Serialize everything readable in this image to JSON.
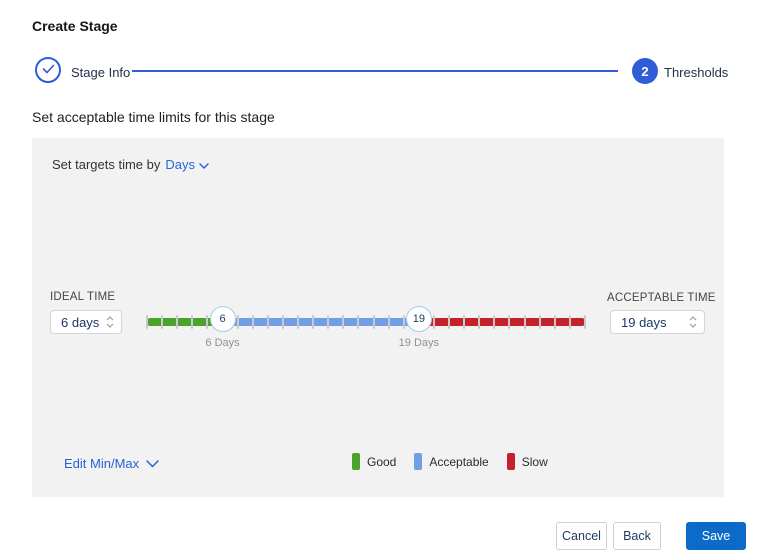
{
  "page": {
    "title": "Create Stage",
    "subtitle": "Set acceptable time limits for this stage"
  },
  "stepper": {
    "step1": {
      "label": "Stage Info",
      "state": "completed"
    },
    "step2": {
      "label": "Thresholds",
      "number": "2",
      "state": "active"
    }
  },
  "panel": {
    "targets_prefix": "Set targets time by",
    "unit_dropdown": {
      "value": "Days"
    },
    "ideal": {
      "label": "IDEAL TIME",
      "value": "6 days"
    },
    "acceptable": {
      "label": "ACCEPTABLE TIME",
      "value": "19 days"
    },
    "edit_minmax_label": "Edit Min/Max"
  },
  "slider": {
    "min": 1,
    "max": 30,
    "ideal_value": 6,
    "acceptable_value": 19,
    "ideal_handle_label": "6",
    "acceptable_handle_label": "19",
    "ideal_caption": "6 Days",
    "acceptable_caption": "19 Days",
    "colors": {
      "good": "#4aa32b",
      "acceptable": "#6f9fe8",
      "slow": "#c4212d"
    }
  },
  "legend": [
    {
      "label": "Good",
      "color": "#4aa32b"
    },
    {
      "label": "Acceptable",
      "color": "#6f9fe8"
    },
    {
      "label": "Slow",
      "color": "#c4212d"
    }
  ],
  "footer": {
    "cancel_label": "Cancel",
    "back_label": "Back",
    "save_label": "Save"
  },
  "colors": {
    "accent_blue": "#2f5dd8",
    "link_blue": "#2666d8",
    "save_button_blue": "#0c6ac8",
    "panel_background": "#f2f2f2",
    "handle_border": "#a5cbe9"
  }
}
